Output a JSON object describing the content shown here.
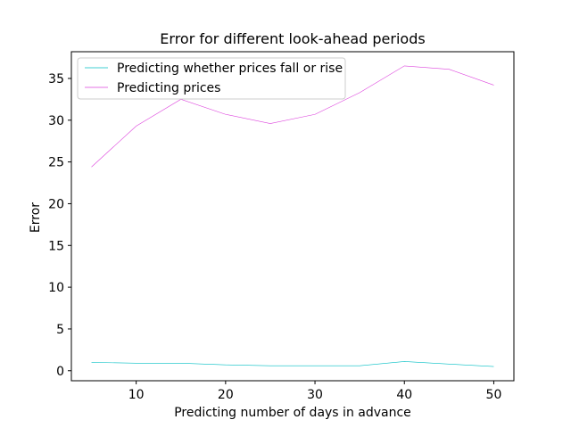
{
  "chart_data": {
    "type": "line",
    "title": "Error for different look-ahead periods",
    "xlabel": "Predicting number of days in advance",
    "ylabel": "Error",
    "x": [
      5,
      10,
      15,
      20,
      25,
      30,
      35,
      40,
      45,
      50
    ],
    "series": [
      {
        "name": "Predicting whether prices fall or rise",
        "color": "#00bfc4",
        "values": [
          1.0,
          0.9,
          0.9,
          0.7,
          0.6,
          0.6,
          0.6,
          1.1,
          0.8,
          0.5
        ]
      },
      {
        "name": "Predicting prices",
        "color": "#dd44dd",
        "values": [
          24.4,
          29.3,
          32.5,
          30.7,
          29.6,
          30.7,
          33.3,
          36.5,
          36.1,
          34.2
        ]
      }
    ],
    "xlim": [
      2.75,
      52.25
    ],
    "ylim": [
      -1.2,
      38.2
    ],
    "xticks": [
      10,
      20,
      30,
      40,
      50
    ],
    "yticks": [
      0,
      5,
      10,
      15,
      20,
      25,
      30,
      35
    ],
    "grid": false,
    "legend_position": "top-left"
  }
}
